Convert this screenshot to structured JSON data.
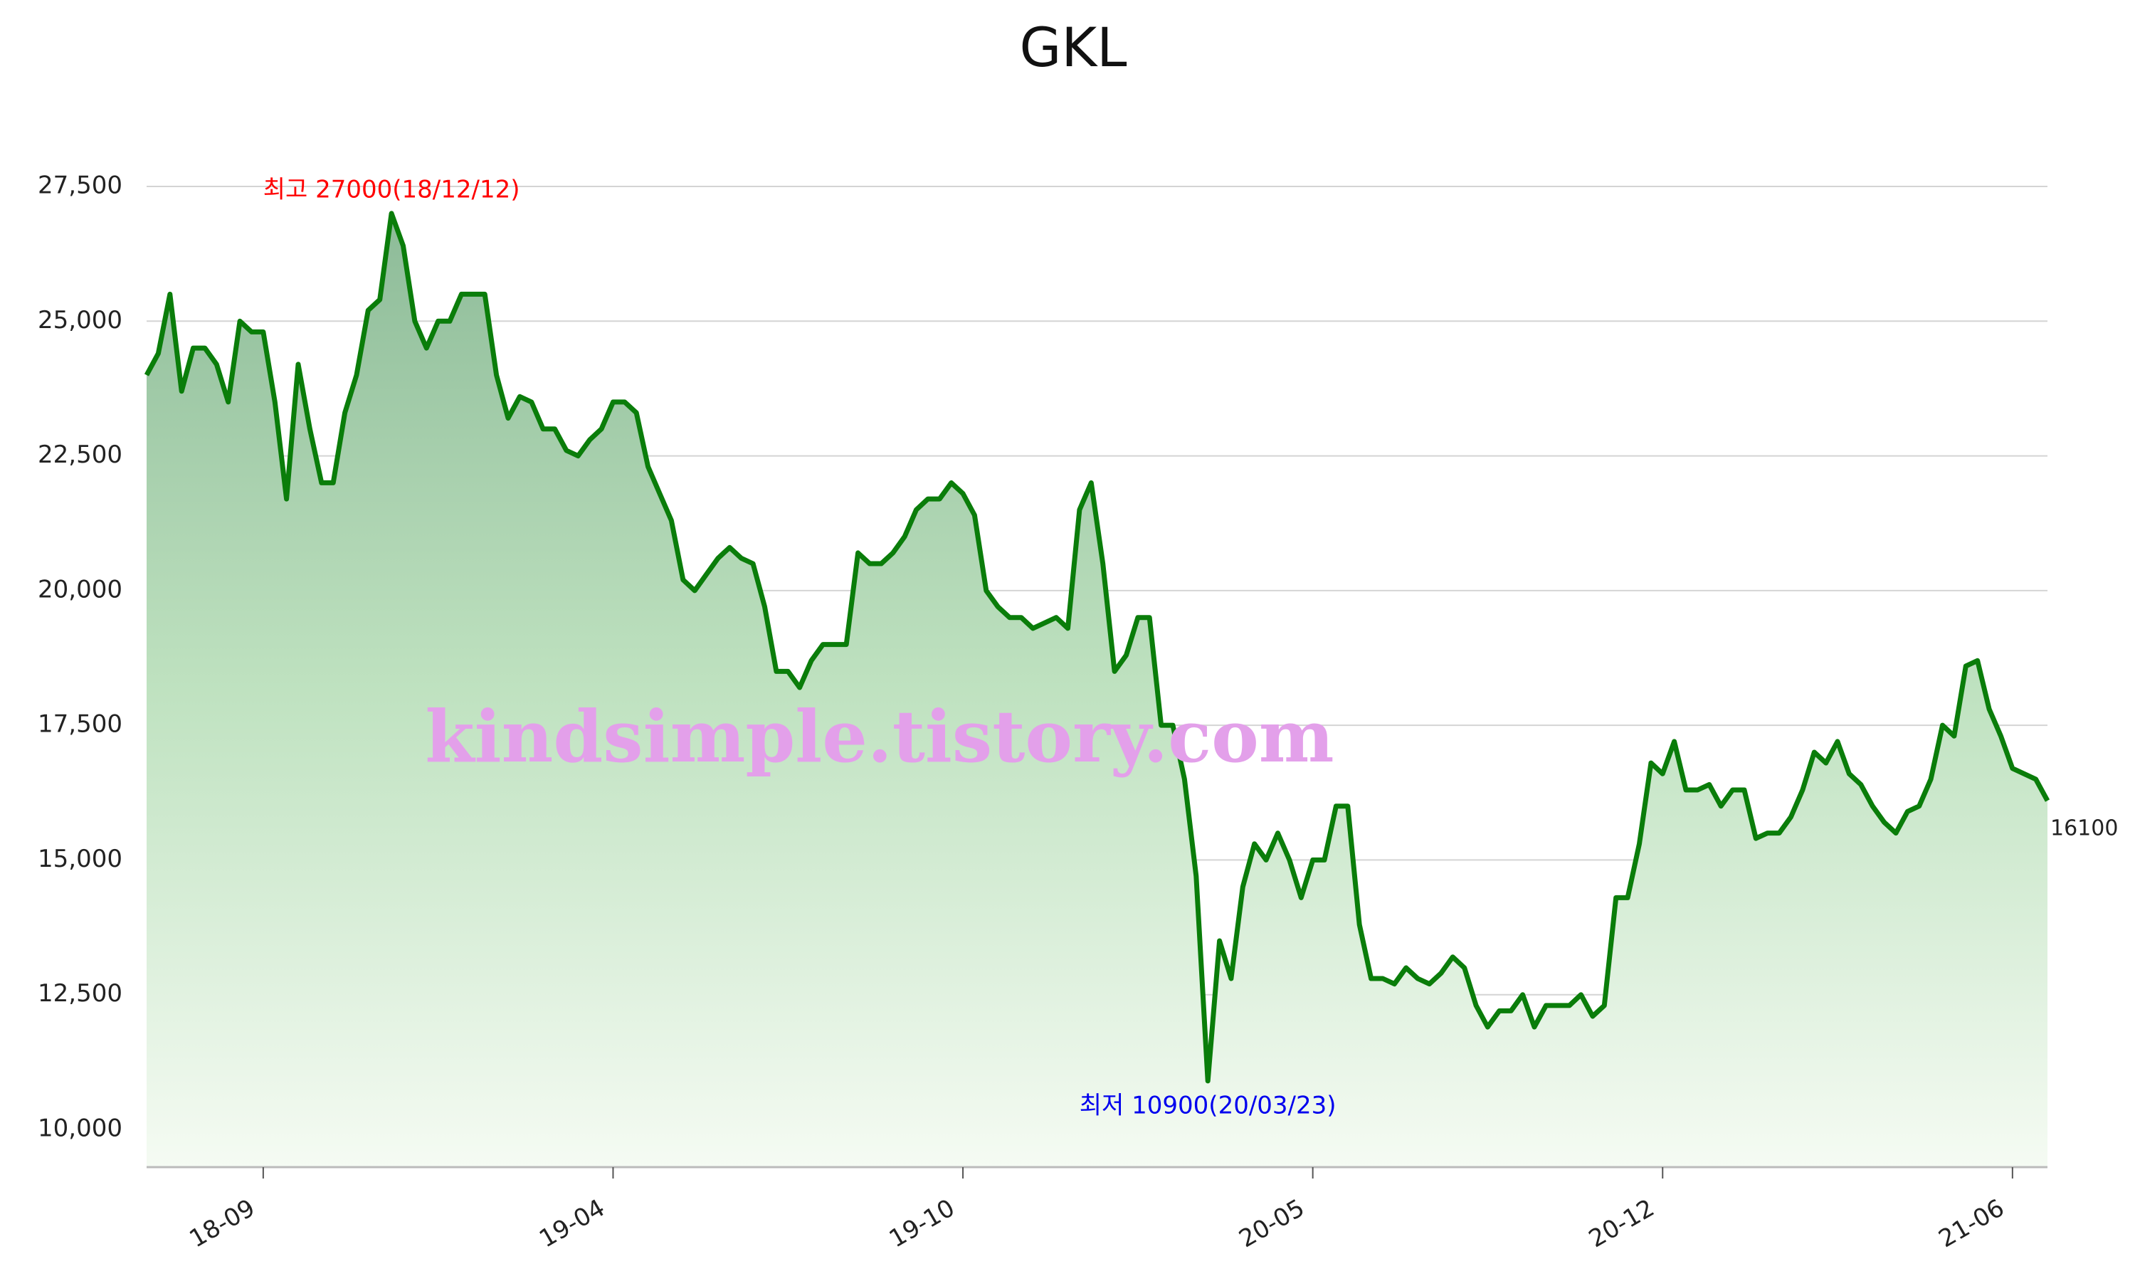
{
  "chart_data": {
    "type": "line",
    "title": "GKL",
    "categories": [
      null,
      null,
      null,
      null,
      null,
      null,
      null,
      null,
      null,
      null,
      "18-09",
      null,
      null,
      null,
      null,
      null,
      null,
      null,
      null,
      null,
      null,
      null,
      null,
      null,
      null,
      null,
      null,
      null,
      null,
      null,
      null,
      null,
      null,
      null,
      null,
      null,
      null,
      null,
      null,
      null,
      "19-04",
      null,
      null,
      null,
      null,
      null,
      null,
      null,
      null,
      null,
      null,
      null,
      null,
      null,
      null,
      null,
      null,
      null,
      null,
      null,
      null,
      null,
      null,
      null,
      null,
      null,
      null,
      null,
      null,
      null,
      "19-10",
      null,
      null,
      null,
      null,
      null,
      null,
      null,
      null,
      null,
      null,
      null,
      null,
      null,
      null,
      null,
      null,
      null,
      null,
      null,
      null,
      null,
      null,
      null,
      null,
      null,
      null,
      null,
      null,
      null,
      "20-05",
      null,
      null,
      null,
      null,
      null,
      null,
      null,
      null,
      null,
      null,
      null,
      null,
      null,
      null,
      null,
      null,
      null,
      null,
      null,
      null,
      null,
      null,
      null,
      null,
      null,
      null,
      null,
      null,
      null,
      "20-12",
      null,
      null,
      null,
      null,
      null,
      null,
      null,
      null,
      null,
      null,
      null,
      null,
      null,
      null,
      null,
      null,
      null,
      null,
      null,
      null,
      null,
      null,
      null,
      null,
      null,
      null,
      null,
      null,
      null,
      "21-06",
      null,
      null,
      null
    ],
    "series": [
      {
        "name": "GKL",
        "color": "#0a7d0a",
        "values": [
          24000,
          24400,
          25500,
          23700,
          24500,
          24500,
          24200,
          23500,
          25000,
          24800,
          24800,
          23500,
          21700,
          24200,
          23000,
          22000,
          22000,
          23300,
          24000,
          25200,
          25400,
          27000,
          26400,
          25000,
          24500,
          25000,
          25000,
          25500,
          25500,
          25500,
          24000,
          23200,
          23600,
          23500,
          23000,
          23000,
          22600,
          22500,
          22800,
          23000,
          23500,
          23500,
          23300,
          22300,
          21800,
          21300,
          20200,
          20000,
          20300,
          20600,
          20800,
          20600,
          20500,
          19700,
          18500,
          18500,
          18200,
          18700,
          19000,
          19000,
          19000,
          20700,
          20500,
          20500,
          20700,
          21000,
          21500,
          21700,
          21700,
          22000,
          21800,
          21400,
          20000,
          19700,
          19500,
          19500,
          19300,
          19400,
          19500,
          19300,
          21500,
          22000,
          20500,
          18500,
          18800,
          19500,
          19500,
          17500,
          17500,
          16500,
          14700,
          10900,
          13500,
          12800,
          14500,
          15300,
          15000,
          15500,
          15000,
          14300,
          15000,
          15000,
          16000,
          16000,
          13800,
          12800,
          12800,
          12700,
          13000,
          12800,
          12700,
          12900,
          13200,
          13000,
          12300,
          11900,
          12200,
          12200,
          12500,
          11900,
          12300,
          12300,
          12300,
          12500,
          12100,
          12300,
          14300,
          14300,
          15300,
          16800,
          16600,
          17200,
          16300,
          16300,
          16400,
          16000,
          16300,
          16300,
          15400,
          15500,
          15500,
          15800,
          16300,
          17000,
          16800,
          17200,
          16600,
          16400,
          16000,
          15700,
          15500,
          15900,
          16000,
          16500,
          17500,
          17300,
          18600,
          18700,
          17800,
          17300,
          16700,
          16600,
          16500,
          16100
        ]
      }
    ],
    "ylim": [
      9300,
      27500
    ],
    "yticks": [
      {
        "value": 10000,
        "label": "10,000"
      },
      {
        "value": 12500,
        "label": "12,500"
      },
      {
        "value": 15000,
        "label": "15,000"
      },
      {
        "value": 17500,
        "label": "17,500"
      },
      {
        "value": 20000,
        "label": "20,000"
      },
      {
        "value": 22500,
        "label": "22,500"
      },
      {
        "value": 25000,
        "label": "25,000"
      },
      {
        "value": 27500,
        "label": "27,500"
      }
    ],
    "grid": true,
    "max_annotation": {
      "text": "최고 27000(18/12/12)",
      "color": "#ff0000"
    },
    "min_annotation": {
      "text": "최저 10900(20/03/23)",
      "color": "#0000ee"
    },
    "watermark": {
      "text": "kindsimple.tistory.com",
      "color": "#e3a0ea"
    }
  }
}
